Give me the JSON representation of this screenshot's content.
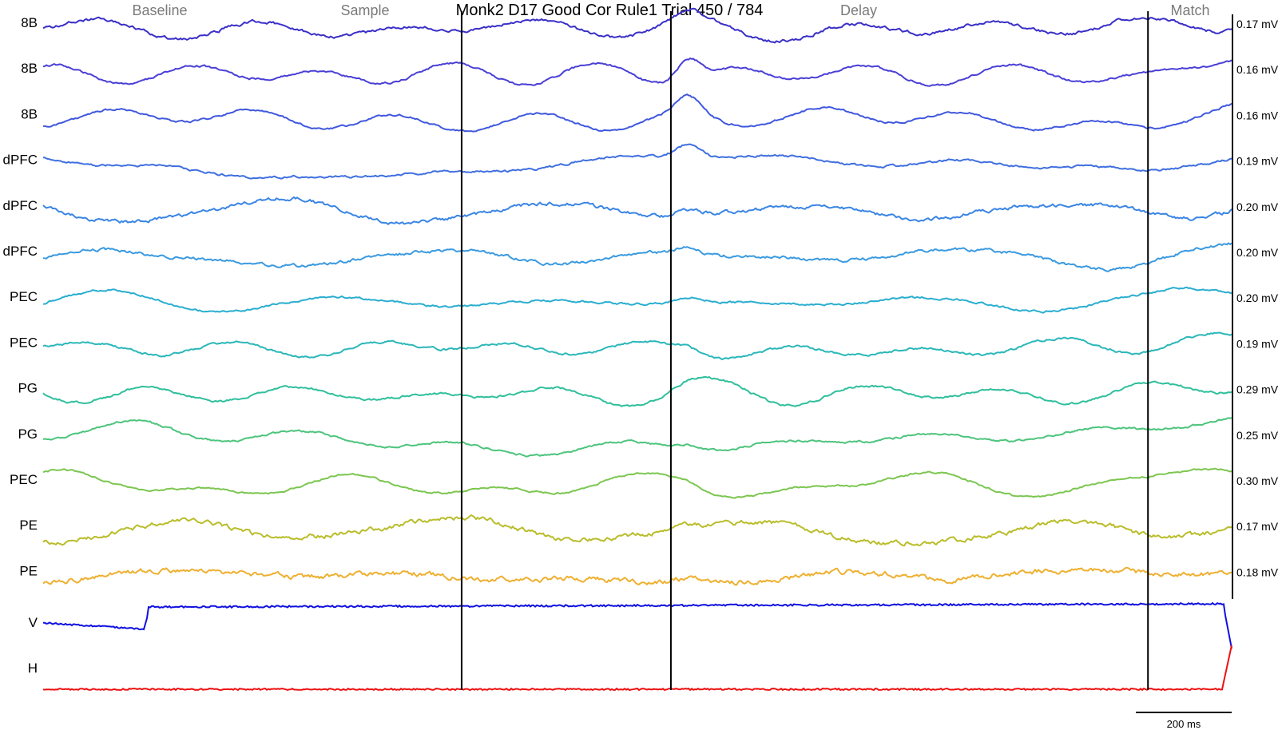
{
  "chart_data": {
    "type": "line",
    "title": "Monk2 D17 Good Cor Rule1 Trial 450 / 784",
    "epochs": [
      "Baseline",
      "Sample",
      "Delay",
      "Match"
    ],
    "event_times_ms": [
      0,
      500,
      1000,
      2140
    ],
    "time_range_ms": [
      -500,
      2340
    ],
    "scale_bar": {
      "value_ms": 200,
      "label": "200 ms"
    },
    "channels": [
      {
        "label": "8B",
        "scale": "0.17 mV",
        "color": "#3a2fc7",
        "amp": 11,
        "noise": 0.3,
        "seed": 11,
        "bump": 1.0
      },
      {
        "label": "8B",
        "scale": "0.16 mV",
        "color": "#4a3fd6",
        "amp": 13,
        "noise": 0.18,
        "seed": 23,
        "bump": 2.4
      },
      {
        "label": "8B",
        "scale": "0.16 mV",
        "color": "#4058de",
        "amp": 12,
        "noise": 0.18,
        "seed": 37,
        "bump": 2.0
      },
      {
        "label": "dPFC",
        "scale": "0.19 mV",
        "color": "#3f6fe0",
        "amp": 12,
        "noise": 0.2,
        "seed": 41,
        "bump": 1.6
      },
      {
        "label": "dPFC",
        "scale": "0.20 mV",
        "color": "#3a85e4",
        "amp": 11,
        "noise": 0.35,
        "seed": 53,
        "bump": 0.8
      },
      {
        "label": "dPFC",
        "scale": "0.20 mV",
        "color": "#3a9ae0",
        "amp": 11,
        "noise": 0.3,
        "seed": 67,
        "bump": 0.8
      },
      {
        "label": "PEC",
        "scale": "0.20 mV",
        "color": "#2aaed0",
        "amp": 15,
        "noise": 0.15,
        "seed": 71,
        "bump": 0.6
      },
      {
        "label": "PEC",
        "scale": "0.19 mV",
        "color": "#2bb7b9",
        "amp": 12,
        "noise": 0.2,
        "seed": 83,
        "bump": 0.6
      },
      {
        "label": "PG",
        "scale": "0.29 mV",
        "color": "#2fbf9c",
        "amp": 12,
        "noise": 0.2,
        "seed": 97,
        "bump": 0.5
      },
      {
        "label": "PG",
        "scale": "0.25 mV",
        "color": "#4cc47c",
        "amp": 15,
        "noise": 0.15,
        "seed": 101,
        "bump": 0.5
      },
      {
        "label": "PEC",
        "scale": "0.30 mV",
        "color": "#7cc650",
        "amp": 13,
        "noise": 0.15,
        "seed": 113,
        "bump": 0.5
      },
      {
        "label": "PE",
        "scale": "0.17 mV",
        "color": "#b9bd2a",
        "amp": 11,
        "noise": 0.45,
        "seed": 127,
        "bump": 0.5
      },
      {
        "label": "PE",
        "scale": "0.18 mV",
        "color": "#eeb030",
        "amp": 11,
        "noise": 0.5,
        "seed": 131,
        "bump": 0.5
      }
    ],
    "eye": [
      {
        "label": "V",
        "color": "#1010e0"
      },
      {
        "label": "H",
        "color": "#ee1010"
      }
    ]
  }
}
